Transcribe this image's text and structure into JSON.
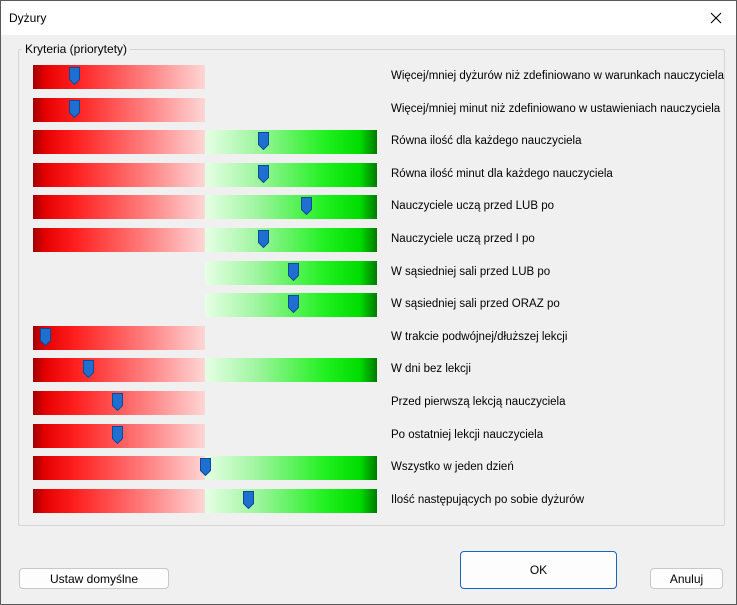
{
  "window": {
    "title": "Dyżury"
  },
  "group": {
    "legend": "Kryteria (priorytety)"
  },
  "colors": {
    "thumb": "#1e6fd0",
    "red": "#e60000",
    "green": "#00dd00"
  },
  "criteria": [
    {
      "label": "Więcej/mniej dyżurów niż zdefiniowano w warunkach nauczyciela",
      "has_red": true,
      "has_green": false,
      "level": 0.12
    },
    {
      "label": "Więcej/mniej minut niż zdefiniowano w ustawieniach nauczyciela",
      "has_red": true,
      "has_green": false,
      "level": 0.12
    },
    {
      "label": "Równa ilość dla każdego nauczyciela",
      "has_red": true,
      "has_green": true,
      "level": 0.67
    },
    {
      "label": "Równa ilość minut dla każdego nauczyciela",
      "has_red": true,
      "has_green": true,
      "level": 0.67
    },
    {
      "label": "Nauczyciele uczą przed LUB po",
      "has_red": true,
      "has_green": true,
      "level": 0.795
    },
    {
      "label": "Nauczyciele uczą przed I po",
      "has_red": true,
      "has_green": true,
      "level": 0.67
    },
    {
      "label": "W sąsiedniej sali przed LUB po",
      "has_red": false,
      "has_green": true,
      "level": 0.755
    },
    {
      "label": "W sąsiedniej sali przed ORAZ po",
      "has_red": false,
      "has_green": true,
      "level": 0.755
    },
    {
      "label": "W trakcie podwójnej/dłuższej lekcji",
      "has_red": true,
      "has_green": false,
      "level": 0.035
    },
    {
      "label": "W dni bez lekcji",
      "has_red": true,
      "has_green": true,
      "level": 0.16
    },
    {
      "label": "Przed pierwszą lekcją nauczyciela",
      "has_red": true,
      "has_green": false,
      "level": 0.245
    },
    {
      "label": "Po ostatniej lekcji nauczyciela",
      "has_red": true,
      "has_green": false,
      "level": 0.245
    },
    {
      "label": "Wszystko w jeden dzień",
      "has_red": true,
      "has_green": true,
      "level": 0.5
    },
    {
      "label": "Ilość następujących po sobie dyżurów",
      "has_red": true,
      "has_green": true,
      "level": 0.625
    }
  ],
  "buttons": {
    "default_label": "Ustaw domyślne",
    "ok_label": "OK",
    "cancel_label": "Anuluj"
  }
}
